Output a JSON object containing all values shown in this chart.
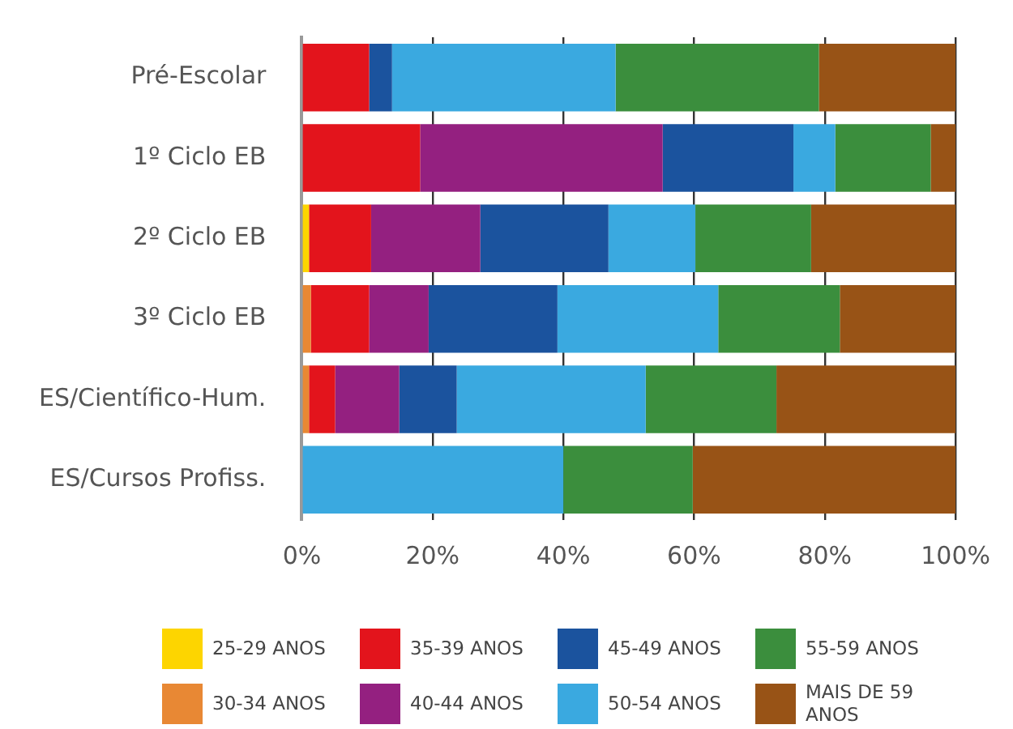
{
  "chart_data": {
    "type": "bar",
    "orientation": "horizontal",
    "stacked": true,
    "categories": [
      "Pré-Escolar",
      "1º Ciclo EB",
      "2º Ciclo EB",
      "3º Ciclo EB",
      "ES/Científico-Hum.",
      "ES/Cursos Profiss."
    ],
    "series": [
      {
        "name": "25-29 ANOS",
        "color": "#fdd500",
        "values": [
          0,
          0,
          1.1,
          0,
          0,
          0
        ]
      },
      {
        "name": "30-34 ANOS",
        "color": "#e88834",
        "values": [
          0,
          0,
          0,
          1.4,
          1.1,
          0
        ]
      },
      {
        "name": "35-39 ANOS",
        "color": "#e3141c",
        "values": [
          10.3,
          18.1,
          9.5,
          8.9,
          4.0,
          0
        ]
      },
      {
        "name": "40-44  ANOS",
        "color": "#942080",
        "values": [
          0,
          37.1,
          16.7,
          9.1,
          9.8,
          0
        ]
      },
      {
        "name": "45-49 ANOS",
        "color": "#1b539e",
        "values": [
          3.5,
          20.0,
          19.6,
          19.7,
          8.8,
          0
        ]
      },
      {
        "name": "50-54 ANOS",
        "color": "#3aa9e0",
        "values": [
          34.2,
          6.4,
          13.3,
          24.6,
          28.9,
          40.0
        ]
      },
      {
        "name": "55-59 ANOS",
        "color": "#3b8e3d",
        "values": [
          31.1,
          14.6,
          17.7,
          18.6,
          20.0,
          19.8
        ]
      },
      {
        "name": "MAIS DE 59 ANOS",
        "color": "#985316",
        "values": [
          20.9,
          3.8,
          22.1,
          17.7,
          27.4,
          40.2
        ]
      }
    ],
    "xlim": [
      0,
      100
    ],
    "xticks": [
      {
        "value": 0,
        "label": "0%"
      },
      {
        "value": 20,
        "label": "20%"
      },
      {
        "value": 40,
        "label": "40%"
      },
      {
        "value": 60,
        "label": "60%"
      },
      {
        "value": 80,
        "label": "80%"
      },
      {
        "value": 100,
        "label": "100%"
      }
    ],
    "grid": "x",
    "legend": "bottom"
  }
}
